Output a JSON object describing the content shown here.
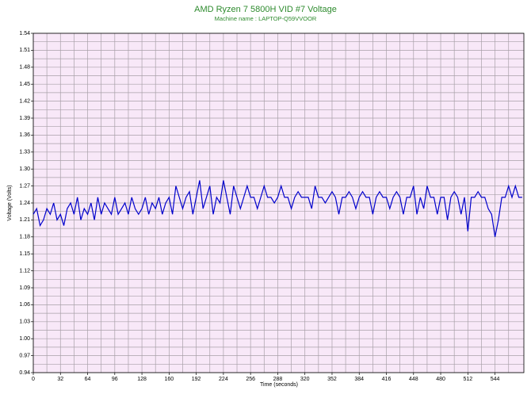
{
  "chart_data": {
    "type": "line",
    "title": "AMD Ryzen 7 5800H VID #7 Voltage",
    "subtitle": "Machine name : LAPTOP-Q59VVOOR",
    "x_label": "Time (seconds)",
    "y_label": "Voltage (Volts)",
    "x": [
      0,
      4,
      8,
      12,
      16,
      20,
      24,
      28,
      32,
      36,
      40,
      44,
      48,
      52,
      56,
      60,
      64,
      68,
      72,
      76,
      80,
      84,
      88,
      92,
      96,
      100,
      104,
      108,
      112,
      116,
      120,
      124,
      128,
      132,
      136,
      140,
      144,
      148,
      152,
      156,
      160,
      164,
      168,
      172,
      176,
      180,
      184,
      188,
      192,
      196,
      200,
      204,
      208,
      212,
      216,
      220,
      224,
      228,
      232,
      236,
      240,
      244,
      248,
      252,
      256,
      260,
      264,
      268,
      272,
      276,
      280,
      284,
      288,
      292,
      296,
      300,
      304,
      308,
      312,
      316,
      320,
      324,
      328,
      332,
      336,
      340,
      344,
      348,
      352,
      356,
      360,
      364,
      368,
      372,
      376,
      380,
      384,
      388,
      392,
      396,
      400,
      404,
      408,
      412,
      416,
      420,
      424,
      428,
      432,
      436,
      440,
      444,
      448,
      452,
      456,
      460,
      464,
      468,
      472,
      476,
      480,
      484,
      488,
      492,
      496,
      500,
      504,
      508,
      512,
      516,
      520,
      524,
      528,
      532,
      536,
      540,
      544,
      548,
      552,
      556,
      560,
      564,
      568,
      572,
      576
    ],
    "series": [
      {
        "name": "VID #7",
        "color": "#0000cc",
        "values": [
          1.22,
          1.23,
          1.2,
          1.21,
          1.23,
          1.22,
          1.24,
          1.21,
          1.22,
          1.2,
          1.23,
          1.24,
          1.22,
          1.25,
          1.21,
          1.23,
          1.22,
          1.24,
          1.21,
          1.25,
          1.22,
          1.24,
          1.23,
          1.22,
          1.25,
          1.22,
          1.23,
          1.24,
          1.22,
          1.25,
          1.23,
          1.22,
          1.23,
          1.25,
          1.22,
          1.24,
          1.23,
          1.25,
          1.22,
          1.24,
          1.25,
          1.22,
          1.27,
          1.25,
          1.23,
          1.25,
          1.26,
          1.22,
          1.25,
          1.28,
          1.23,
          1.25,
          1.27,
          1.22,
          1.25,
          1.24,
          1.28,
          1.25,
          1.22,
          1.27,
          1.25,
          1.23,
          1.25,
          1.27,
          1.25,
          1.25,
          1.23,
          1.25,
          1.27,
          1.25,
          1.25,
          1.24,
          1.25,
          1.27,
          1.25,
          1.25,
          1.23,
          1.25,
          1.26,
          1.25,
          1.25,
          1.25,
          1.23,
          1.27,
          1.25,
          1.25,
          1.24,
          1.25,
          1.26,
          1.25,
          1.22,
          1.25,
          1.25,
          1.26,
          1.25,
          1.23,
          1.25,
          1.26,
          1.25,
          1.25,
          1.22,
          1.25,
          1.26,
          1.25,
          1.25,
          1.23,
          1.25,
          1.26,
          1.25,
          1.22,
          1.25,
          1.25,
          1.27,
          1.22,
          1.25,
          1.23,
          1.27,
          1.25,
          1.25,
          1.22,
          1.25,
          1.25,
          1.21,
          1.25,
          1.26,
          1.25,
          1.22,
          1.25,
          1.19,
          1.25,
          1.25,
          1.26,
          1.25,
          1.25,
          1.23,
          1.22,
          1.18,
          1.21,
          1.25,
          1.25,
          1.27,
          1.25,
          1.27,
          1.25,
          1.25
        ]
      }
    ],
    "xlim": [
      0,
      578
    ],
    "xticks": [
      0,
      32,
      64,
      96,
      128,
      160,
      192,
      224,
      256,
      288,
      320,
      352,
      384,
      416,
      448,
      480,
      512,
      544
    ],
    "ylim": [
      0.94,
      1.54
    ],
    "yticks": [
      0.94,
      0.97,
      {
        "value": 1.0,
        "label": "1.00"
      },
      1.03,
      1.06,
      1.09,
      1.12,
      1.15,
      1.18,
      1.21,
      1.24,
      1.27,
      {
        "value": 1.3,
        "label": "1.30"
      },
      1.33,
      1.36,
      1.39,
      1.42,
      1.45,
      1.48,
      1.51,
      1.54
    ],
    "grid": true,
    "plot_background": "#f8e8f8",
    "grid_color": "#a8a0a8"
  }
}
